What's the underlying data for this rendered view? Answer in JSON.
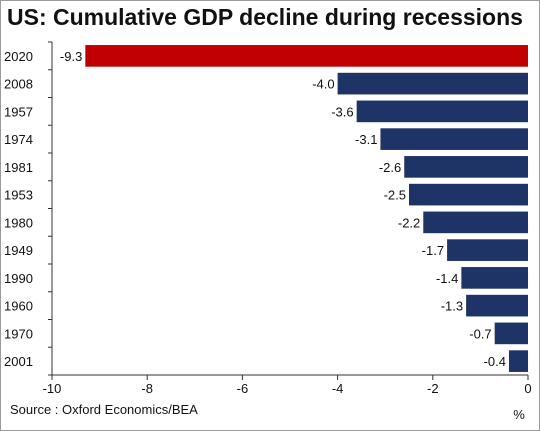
{
  "title": "US: Cumulative GDP decline during recessions",
  "source": "Source : Oxford Economics/BEA",
  "chart_data": {
    "type": "bar",
    "orientation": "horizontal",
    "title": "US: Cumulative GDP decline during recessions",
    "xlabel": "%",
    "ylabel": "",
    "categories": [
      "2020",
      "2008",
      "1957",
      "1974",
      "1981",
      "1953",
      "1980",
      "1949",
      "1990",
      "1960",
      "1970",
      "2001"
    ],
    "values": [
      -9.3,
      -4.0,
      -3.6,
      -3.1,
      -2.6,
      -2.5,
      -2.2,
      -1.7,
      -1.4,
      -1.3,
      -0.7,
      -0.4
    ],
    "value_labels": [
      "-9.3",
      "-4.0",
      "-3.6",
      "-3.1",
      "-2.6",
      "-2.5",
      "-2.2",
      "-1.7",
      "-1.4",
      "-1.3",
      "-0.7",
      "-0.4"
    ],
    "xlim": [
      -10,
      0
    ],
    "xticks": [
      -10,
      -8,
      -6,
      -4,
      -2,
      0
    ],
    "grid": false,
    "legend": "none",
    "colors": {
      "highlight": "#c00000",
      "default": "#1f3466"
    },
    "highlight_category": "2020"
  }
}
